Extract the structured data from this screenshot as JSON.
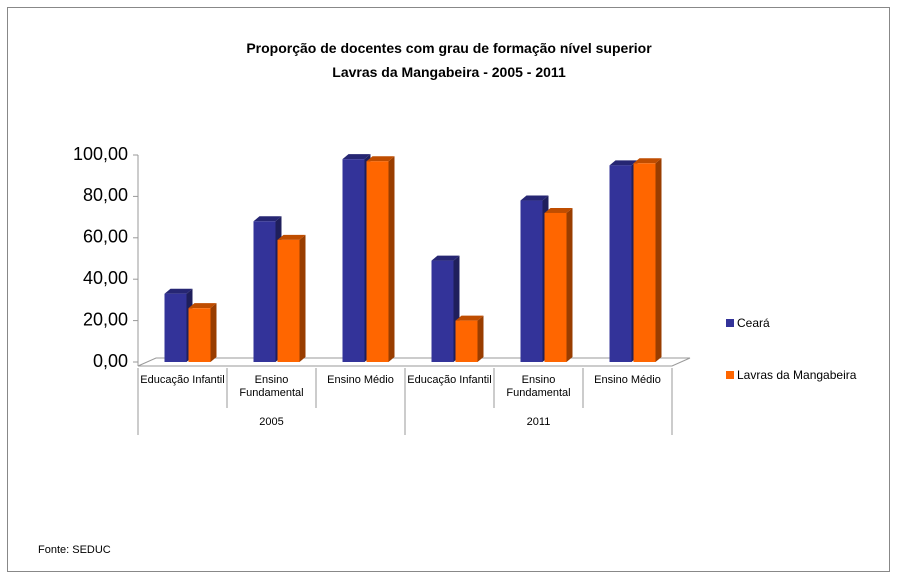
{
  "chart_data": {
    "type": "bar3d",
    "title": "Proporção de docentes com grau de formação nível superior",
    "subtitle": "Lavras da Mangabeira -  2005 - 2011",
    "categories": [
      "Educação Infantil",
      "Ensino Fundamental",
      "Ensino Médio",
      "Educação Infantil",
      "Ensino Fundamental",
      "Ensino Médio"
    ],
    "groups": [
      "2005",
      "2011"
    ],
    "series": [
      {
        "name": "Ceará",
        "color": "#333399",
        "values": [
          33,
          68,
          98,
          49,
          78,
          95
        ]
      },
      {
        "name": "Lavras da Mangabeira",
        "color": "#FF6600",
        "values": [
          26,
          59,
          97,
          20,
          72,
          96
        ]
      }
    ],
    "ylim": [
      0,
      100
    ],
    "yticks": [
      {
        "value": 0,
        "label": "0,00"
      },
      {
        "value": 20,
        "label": "20,00"
      },
      {
        "value": 40,
        "label": "40,00"
      },
      {
        "value": 60,
        "label": "60,00"
      },
      {
        "value": 80,
        "label": "80,00"
      },
      {
        "value": 100,
        "label": "100,00"
      }
    ],
    "source": "Fonte: SEDUC"
  }
}
